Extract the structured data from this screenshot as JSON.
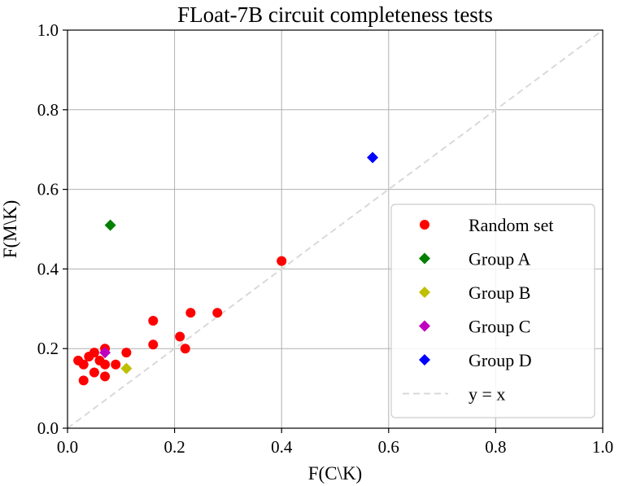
{
  "chart_data": {
    "type": "scatter",
    "title": "FLoat-7B circuit completeness tests",
    "xlabel": "F(C\\K)",
    "ylabel": "F(M\\K)",
    "xlim": [
      0.0,
      1.0
    ],
    "ylim": [
      0.0,
      1.0
    ],
    "xticks": [
      "0.0",
      "0.2",
      "0.4",
      "0.6",
      "0.8",
      "1.0"
    ],
    "yticks": [
      "0.0",
      "0.2",
      "0.4",
      "0.6",
      "0.8",
      "1.0"
    ],
    "grid": true,
    "legend_position": "lower-right",
    "series": [
      {
        "name": "Random set",
        "marker": "circle",
        "color": "#ff0000",
        "points": [
          [
            0.02,
            0.17
          ],
          [
            0.03,
            0.16
          ],
          [
            0.03,
            0.12
          ],
          [
            0.04,
            0.18
          ],
          [
            0.05,
            0.19
          ],
          [
            0.05,
            0.14
          ],
          [
            0.06,
            0.17
          ],
          [
            0.07,
            0.2
          ],
          [
            0.07,
            0.16
          ],
          [
            0.07,
            0.13
          ],
          [
            0.09,
            0.16
          ],
          [
            0.11,
            0.19
          ],
          [
            0.16,
            0.27
          ],
          [
            0.16,
            0.21
          ],
          [
            0.21,
            0.23
          ],
          [
            0.22,
            0.2
          ],
          [
            0.23,
            0.29
          ],
          [
            0.28,
            0.29
          ],
          [
            0.4,
            0.42
          ]
        ]
      },
      {
        "name": "Group A",
        "marker": "diamond",
        "color": "#008000",
        "points": [
          [
            0.08,
            0.51
          ]
        ]
      },
      {
        "name": "Group B",
        "marker": "diamond",
        "color": "#bfbf00",
        "points": [
          [
            0.11,
            0.15
          ]
        ]
      },
      {
        "name": "Group C",
        "marker": "diamond",
        "color": "#bf00bf",
        "points": [
          [
            0.07,
            0.19
          ]
        ]
      },
      {
        "name": "Group D",
        "marker": "diamond",
        "color": "#0000ff",
        "points": [
          [
            0.57,
            0.68
          ]
        ]
      }
    ],
    "reference_line": {
      "name": "y = x",
      "style": "dashed",
      "color": "#d9d9d9",
      "from": [
        0.0,
        0.0
      ],
      "to": [
        1.0,
        1.0
      ]
    }
  }
}
